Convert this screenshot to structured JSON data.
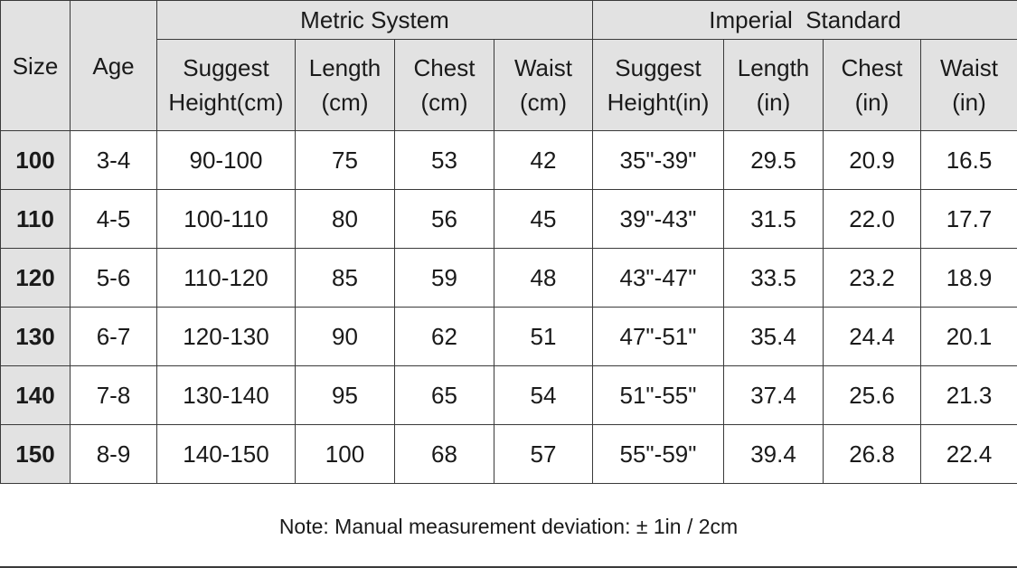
{
  "table": {
    "header": {
      "size": "Size",
      "age": "Age",
      "metric_group": "Metric System",
      "imperial_group": "Imperial  Standard",
      "metric_columns": [
        {
          "line1": "Suggest",
          "line2": "Height(cm)"
        },
        {
          "line1": "Length",
          "line2": "(cm)"
        },
        {
          "line1": "Chest",
          "line2": "(cm)"
        },
        {
          "line1": "Waist",
          "line2": "(cm)"
        }
      ],
      "imperial_columns": [
        {
          "line1": "Suggest",
          "line2": "Height(in)"
        },
        {
          "line1": "Length",
          "line2": "(in)"
        },
        {
          "line1": "Chest",
          "line2": "(in)"
        },
        {
          "line1": "Waist",
          "line2": "(in)"
        }
      ]
    },
    "rows": [
      [
        "100",
        "3-4",
        "90-100",
        "75",
        "53",
        "42",
        "35\"-39\"",
        "29.5",
        "20.9",
        "16.5"
      ],
      [
        "110",
        "4-5",
        "100-110",
        "80",
        "56",
        "45",
        "39\"-43\"",
        "31.5",
        "22.0",
        "17.7"
      ],
      [
        "120",
        "5-6",
        "110-120",
        "85",
        "59",
        "48",
        "43\"-47\"",
        "33.5",
        "23.2",
        "18.9"
      ],
      [
        "130",
        "6-7",
        "120-130",
        "90",
        "62",
        "51",
        "47\"-51\"",
        "35.4",
        "24.4",
        "20.1"
      ],
      [
        "140",
        "7-8",
        "130-140",
        "95",
        "65",
        "54",
        "51\"-55\"",
        "37.4",
        "25.6",
        "21.3"
      ],
      [
        "150",
        "8-9",
        "140-150",
        "100",
        "68",
        "57",
        "55\"-59\"",
        "39.4",
        "26.8",
        "22.4"
      ]
    ]
  },
  "note": "Note: Manual measurement deviation: ± 1in / 2cm",
  "colors": {
    "header_bg": "#e2e2e2",
    "border": "#3a3a3a",
    "text": "#1a1a1a"
  }
}
